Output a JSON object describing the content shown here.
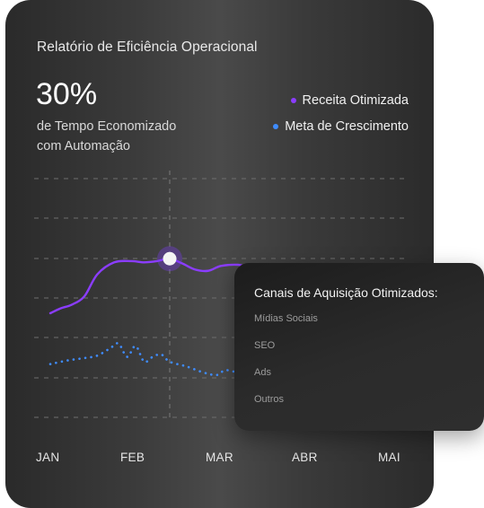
{
  "report": {
    "title": "Relatório de Eficiência Operacional",
    "stat_value": "30%",
    "stat_caption_line1": "de Tempo Economizado",
    "stat_caption_line2": "com Automação"
  },
  "legend": {
    "items": [
      {
        "label": "Receita Otimizada",
        "color": "#8b3dff"
      },
      {
        "label": "Meta de Crescimento",
        "color": "#3f8cff"
      }
    ]
  },
  "chart_data": {
    "type": "line",
    "categories": [
      "JAN",
      "FEB",
      "MAR",
      "ABR",
      "MAI"
    ],
    "ylim": [
      0,
      100
    ],
    "grid": true,
    "highlight_x": 1.4,
    "series": [
      {
        "name": "Receita Otimizada",
        "color": "#8b3dff",
        "style": "solid",
        "points": [
          {
            "x": 0.0,
            "y": 20
          },
          {
            "x": 0.12,
            "y": 24
          },
          {
            "x": 0.25,
            "y": 27
          },
          {
            "x": 0.4,
            "y": 34
          },
          {
            "x": 0.55,
            "y": 52
          },
          {
            "x": 0.75,
            "y": 62
          },
          {
            "x": 0.95,
            "y": 63
          },
          {
            "x": 1.1,
            "y": 62
          },
          {
            "x": 1.25,
            "y": 63
          },
          {
            "x": 1.4,
            "y": 65
          },
          {
            "x": 1.55,
            "y": 61
          },
          {
            "x": 1.7,
            "y": 56
          },
          {
            "x": 1.85,
            "y": 55
          },
          {
            "x": 2.0,
            "y": 59
          },
          {
            "x": 2.2,
            "y": 60
          },
          {
            "x": 2.3,
            "y": 58
          }
        ]
      },
      {
        "name": "Meta de Crescimento",
        "color": "#3f8cff",
        "style": "dotted",
        "points": [
          {
            "x": 0.0,
            "y": -22
          },
          {
            "x": 0.2,
            "y": -19
          },
          {
            "x": 0.4,
            "y": -17
          },
          {
            "x": 0.55,
            "y": -15
          },
          {
            "x": 0.7,
            "y": -9
          },
          {
            "x": 0.8,
            "y": -5
          },
          {
            "x": 0.9,
            "y": -16
          },
          {
            "x": 1.0,
            "y": -7
          },
          {
            "x": 1.1,
            "y": -20
          },
          {
            "x": 1.2,
            "y": -16
          },
          {
            "x": 1.3,
            "y": -14
          },
          {
            "x": 1.4,
            "y": -20
          },
          {
            "x": 1.6,
            "y": -24
          },
          {
            "x": 1.8,
            "y": -29
          },
          {
            "x": 1.95,
            "y": -31
          },
          {
            "x": 2.05,
            "y": -27
          },
          {
            "x": 2.2,
            "y": -28
          },
          {
            "x": 2.3,
            "y": -20
          }
        ]
      }
    ]
  },
  "panel": {
    "title": "Canais de Aquisição Otimizados:",
    "items": [
      "Mídias Sociais",
      "SEO",
      "Ads",
      "Outros"
    ]
  }
}
